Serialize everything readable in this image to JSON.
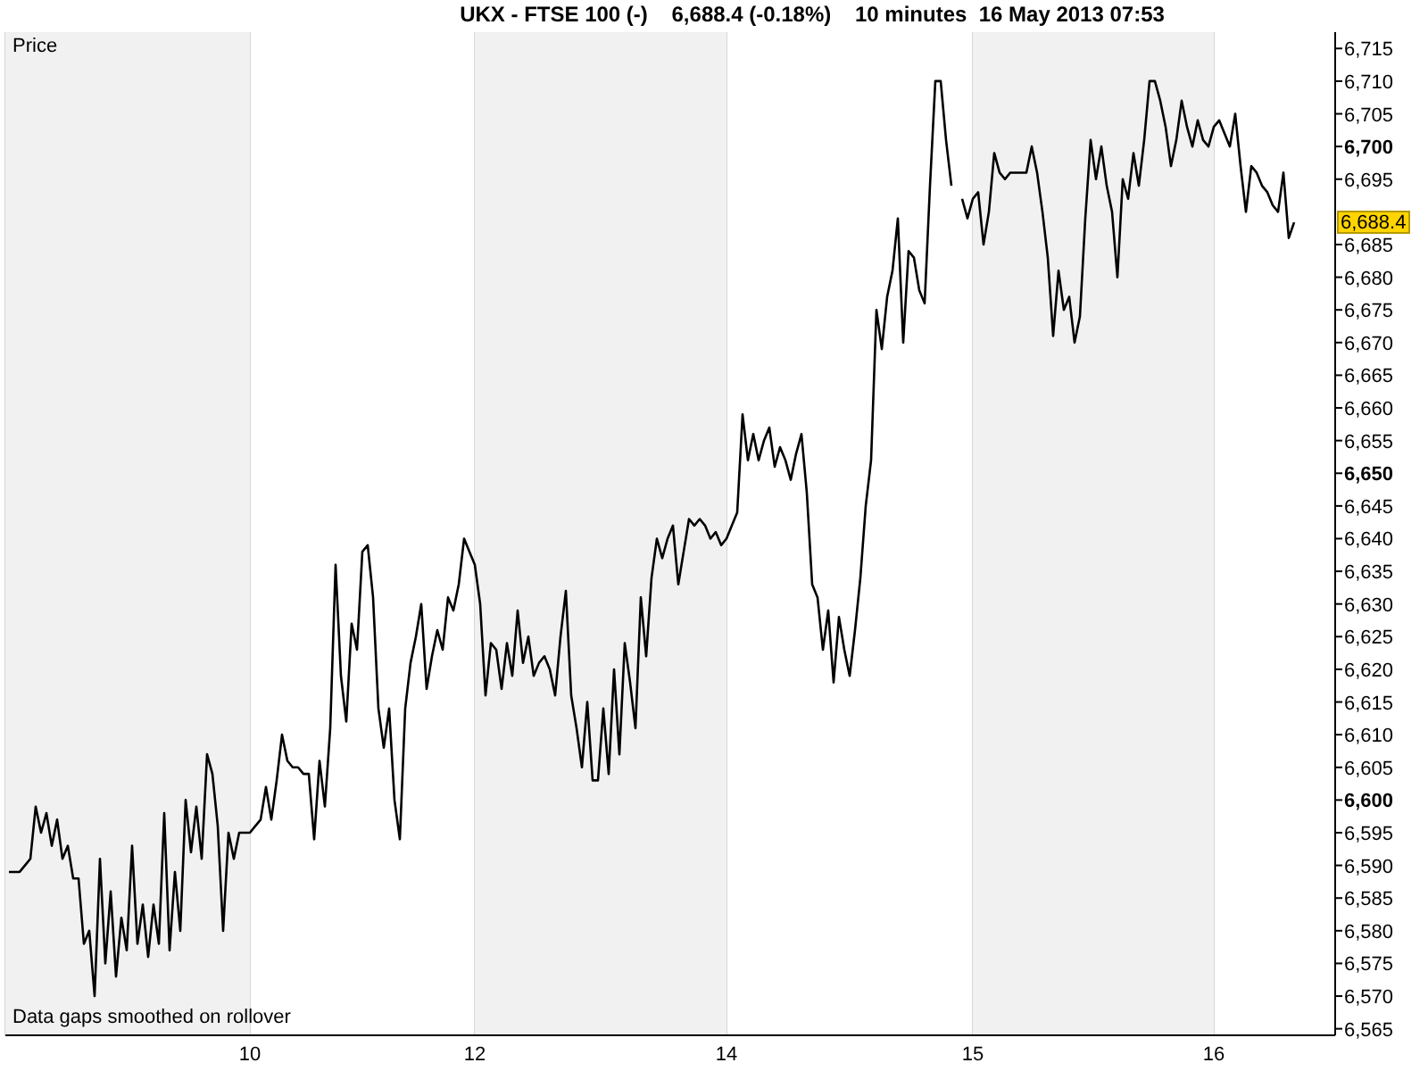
{
  "chart_data": {
    "type": "line",
    "title": "UKX - FTSE 100 (-)    6,688.4 (-0.18%)    10 minutes  16 May 2013 07:53",
    "ylabel": "Price",
    "annotations": [
      "Data gaps smoothed on rollover",
      "6,688.4"
    ],
    "categories": [
      null,
      null,
      null,
      null,
      null,
      null,
      null,
      null,
      null,
      null,
      null,
      null,
      null,
      null,
      null,
      null,
      null,
      null,
      null,
      null,
      null,
      null,
      null,
      null,
      null,
      null,
      null,
      null,
      null,
      null,
      null,
      null,
      null,
      null,
      null,
      null,
      null,
      null,
      null,
      null,
      null,
      null,
      null,
      null,
      null,
      "10",
      null,
      null,
      null,
      null,
      null,
      null,
      null,
      null,
      null,
      null,
      null,
      null,
      null,
      null,
      null,
      null,
      null,
      null,
      null,
      null,
      null,
      null,
      null,
      null,
      null,
      null,
      null,
      null,
      null,
      null,
      null,
      null,
      null,
      null,
      null,
      null,
      null,
      null,
      null,
      null,
      null,
      "12",
      null,
      null,
      null,
      null,
      null,
      null,
      null,
      null,
      null,
      null,
      null,
      null,
      null,
      null,
      null,
      null,
      null,
      null,
      null,
      null,
      null,
      null,
      null,
      null,
      null,
      null,
      null,
      null,
      null,
      null,
      null,
      null,
      null,
      null,
      null,
      null,
      null,
      null,
      null,
      null,
      null,
      null,
      null,
      null,
      null,
      null,
      "14",
      null,
      null,
      null,
      null,
      null,
      null,
      null,
      null,
      null,
      null,
      null,
      null,
      null,
      null,
      null,
      null,
      null,
      null,
      null,
      null,
      null,
      null,
      null,
      null,
      null,
      null,
      null,
      null,
      null,
      null,
      null,
      null,
      null,
      null,
      null,
      null,
      null,
      null,
      null,
      null,
      null,
      null,
      null,
      null,
      null,
      "15",
      null,
      null,
      null,
      null,
      null,
      null,
      null,
      null,
      null,
      null,
      null,
      null,
      null,
      null,
      null,
      null,
      null,
      null,
      null,
      null,
      null,
      null,
      null,
      null,
      null,
      null,
      null,
      null,
      null,
      null,
      null,
      null,
      null,
      null,
      null,
      null,
      null,
      null,
      null,
      null,
      null,
      null,
      null,
      null,
      "16",
      null,
      null,
      null,
      null,
      null,
      null,
      null,
      null,
      null,
      null,
      null,
      null,
      null,
      null,
      null
    ],
    "series": [
      {
        "color": "#000000",
        "values": [
          6589,
          6589,
          6589,
          6590,
          6591,
          6599,
          6595,
          6598,
          6593,
          6597,
          6591,
          6593,
          6588,
          6588,
          6578,
          6580,
          6570,
          6591,
          6575,
          6586,
          6573,
          6582,
          6577,
          6593,
          6578,
          6584,
          6576,
          6584,
          6578,
          6598,
          6577,
          6589,
          6580,
          6600,
          6592,
          6599,
          6591,
          6607,
          6604,
          6596,
          6580,
          6595,
          6591,
          6595,
          6595,
          6595,
          6596,
          6597,
          6602,
          6597,
          6603,
          6610,
          6606,
          6605,
          6605,
          6604,
          6604,
          6594,
          6606,
          6599,
          6611,
          6636,
          6619,
          6612,
          6627,
          6623,
          6638,
          6639,
          6631,
          6614,
          6608,
          6614,
          6600,
          6594,
          6614,
          6621,
          6625,
          6630,
          6617,
          6622,
          6626,
          6623,
          6631,
          6629,
          6633,
          6640,
          6638,
          6636,
          6630,
          6616,
          6624,
          6623,
          6617,
          6624,
          6619,
          6629,
          6621,
          6625,
          6619,
          6621,
          6622,
          6620,
          6616,
          6625,
          6632,
          6616,
          6611,
          6605,
          6615,
          6603,
          6603,
          6614,
          6604,
          6620,
          6607,
          6624,
          6618,
          6611,
          6631,
          6622,
          6634,
          6640,
          6637,
          6640,
          6642,
          6633,
          6638,
          6643,
          6642,
          6643,
          6642,
          6640,
          6641,
          6639,
          6640,
          6642,
          6644,
          6659,
          6652,
          6656,
          6652,
          6655,
          6657,
          6651,
          6654,
          6652,
          6649,
          6653,
          6656,
          6647,
          6633,
          6631,
          6623,
          6629,
          6618,
          6628,
          6623,
          6619,
          6626,
          6634,
          6645,
          6652,
          6675,
          6669,
          6677,
          6681,
          6689,
          6670,
          6684,
          6683,
          6678,
          6676,
          6694,
          6710,
          6710,
          6701,
          6694,
          null,
          6692,
          6689,
          6692,
          6693,
          6685,
          6690,
          6699,
          6696,
          6695,
          6696,
          6696,
          6696,
          6696,
          6700,
          6696,
          6690,
          6683,
          6671,
          6681,
          6675,
          6677,
          6670,
          6674,
          6689,
          6701,
          6695,
          6700,
          6694,
          6690,
          6680,
          6695,
          6692,
          6699,
          6694,
          6701,
          6710,
          6710,
          6707,
          6703,
          6697,
          6701,
          6707,
          6703,
          6700,
          6704,
          6701,
          6700,
          6703,
          6704,
          6702,
          6700,
          6705,
          6697,
          6690,
          6697,
          6696,
          6694,
          6693,
          6691,
          6690,
          6696,
          6686,
          6688.4
        ]
      }
    ],
    "ylim": [
      6564,
      6717.5
    ],
    "yticks": [
      {
        "value": 6565,
        "label": "6,565"
      },
      {
        "value": 6570,
        "label": "6,570"
      },
      {
        "value": 6575,
        "label": "6,575"
      },
      {
        "value": 6580,
        "label": "6,580"
      },
      {
        "value": 6585,
        "label": "6,585"
      },
      {
        "value": 6590,
        "label": "6,590"
      },
      {
        "value": 6595,
        "label": "6,595"
      },
      {
        "value": 6600,
        "label": "6,600"
      },
      {
        "value": 6605,
        "label": "6,605"
      },
      {
        "value": 6610,
        "label": "6,610"
      },
      {
        "value": 6615,
        "label": "6,615"
      },
      {
        "value": 6620,
        "label": "6,620"
      },
      {
        "value": 6625,
        "label": "6,625"
      },
      {
        "value": 6630,
        "label": "6,630"
      },
      {
        "value": 6635,
        "label": "6,635"
      },
      {
        "value": 6640,
        "label": "6,640"
      },
      {
        "value": 6645,
        "label": "6,645"
      },
      {
        "value": 6650,
        "label": "6,650"
      },
      {
        "value": 6655,
        "label": "6,655"
      },
      {
        "value": 6660,
        "label": "6,660"
      },
      {
        "value": 6665,
        "label": "6,665"
      },
      {
        "value": 6670,
        "label": "6,670"
      },
      {
        "value": 6675,
        "label": "6,675"
      },
      {
        "value": 6680,
        "label": "6,680"
      },
      {
        "value": 6685,
        "label": "6,685"
      },
      {
        "value": 6695,
        "label": "6,695"
      },
      {
        "value": 6700,
        "label": "6,700"
      },
      {
        "value": 6705,
        "label": "6,705"
      },
      {
        "value": 6710,
        "label": "6,710"
      },
      {
        "value": 6715,
        "label": "6,715"
      }
    ],
    "grid": "x",
    "bands": [
      {
        "axis": "x",
        "from": "12",
        "to": "14",
        "color": "#f1f1f1"
      },
      {
        "axis": "x",
        "from": "15",
        "to": "16",
        "color": "#f1f1f1"
      }
    ]
  }
}
